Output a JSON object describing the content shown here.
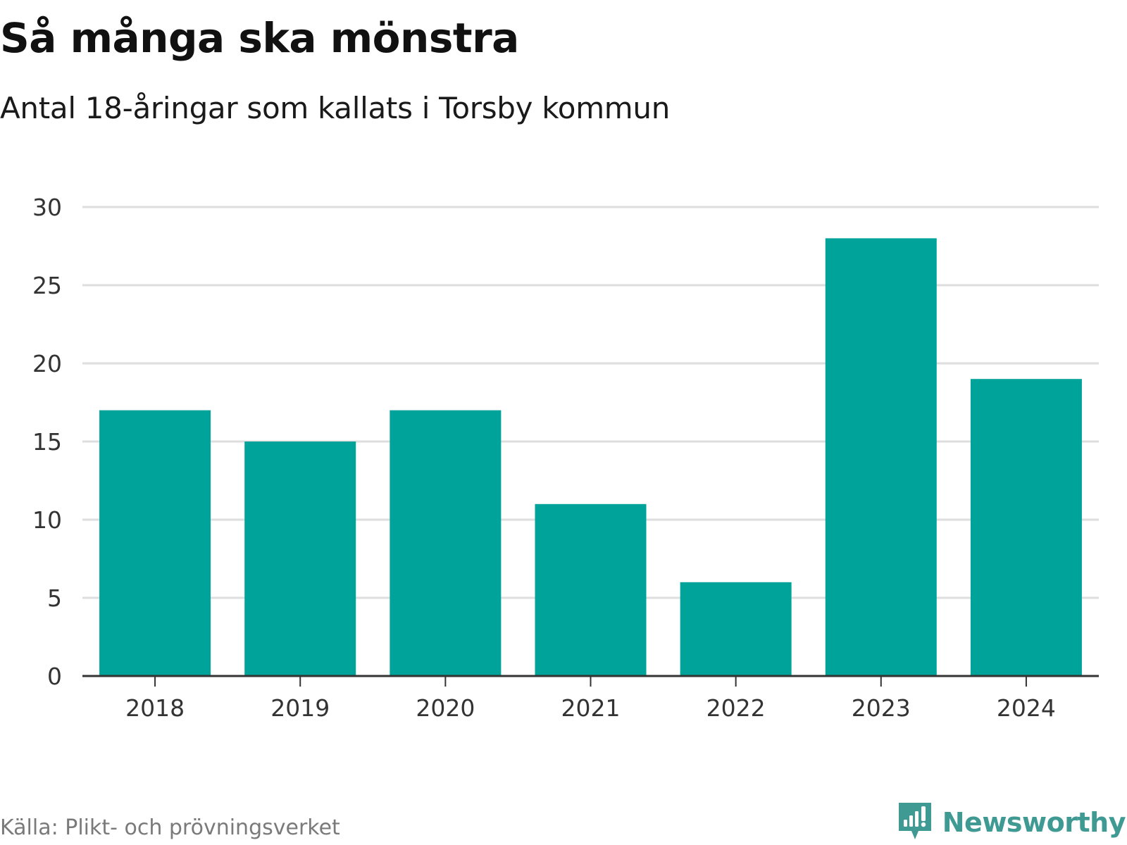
{
  "title": "Så många ska mönstra",
  "subtitle": "Antal 18-åringar som kallats i Torsby kommun",
  "source": "Källa: Plikt- och prövningsverket",
  "brand": {
    "name": "Newsworthy",
    "icon": "newsworthy-logo-icon",
    "color": "#3f9a93"
  },
  "colors": {
    "bar": "#00a39a",
    "grid": "#dedede",
    "axis": "#333333",
    "tick_text": "#333333"
  },
  "chart_data": {
    "type": "bar",
    "title": "Så många ska mönstra",
    "subtitle": "Antal 18-åringar som kallats i Torsby kommun",
    "xlabel": "",
    "ylabel": "",
    "categories": [
      "2018",
      "2019",
      "2020",
      "2021",
      "2022",
      "2023",
      "2024"
    ],
    "values": [
      17,
      15,
      17,
      11,
      6,
      28,
      19
    ],
    "ylim": [
      0,
      30
    ],
    "yticks": [
      0,
      5,
      10,
      15,
      20,
      25,
      30
    ],
    "grid": true,
    "legend": "none"
  }
}
